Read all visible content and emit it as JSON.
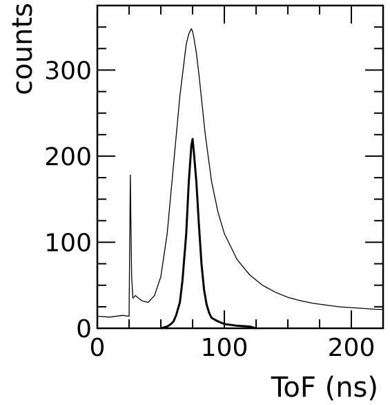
{
  "chart_data": {
    "type": "line",
    "title": "",
    "xlabel": "ToF (ns)",
    "ylabel": "counts",
    "xlim": [
      0,
      225
    ],
    "ylim": [
      0,
      375
    ],
    "x_major_ticks": [
      0,
      100,
      200
    ],
    "x_minor_ticks": [
      25,
      50,
      75,
      125,
      150,
      175
    ],
    "x_tick_labels": [
      "0",
      "100",
      "200"
    ],
    "y_major_ticks": [
      0,
      100,
      200,
      300
    ],
    "y_minor_ticks": [
      25,
      50,
      75,
      125,
      150,
      175,
      225,
      250,
      275,
      325,
      350
    ],
    "y_tick_labels": [
      "0",
      "100",
      "200",
      "300"
    ],
    "grid": false,
    "legend": "none",
    "series": [
      {
        "style": "thin",
        "color": "#000000",
        "x": [
          0,
          10,
          20,
          25,
          26,
          27,
          28,
          30,
          35,
          40,
          45,
          50,
          55,
          60,
          65,
          70,
          72,
          74,
          75,
          76,
          78,
          80,
          85,
          90,
          95,
          100,
          110,
          120,
          130,
          140,
          150,
          160,
          170,
          180,
          190,
          200,
          210,
          220,
          225
        ],
        "y": [
          14,
          13,
          15,
          14,
          178,
          60,
          35,
          38,
          32,
          30,
          38,
          60,
          110,
          190,
          270,
          330,
          342,
          348,
          345,
          338,
          320,
          295,
          225,
          170,
          135,
          110,
          80,
          62,
          50,
          42,
          36,
          32,
          29,
          27,
          25,
          24,
          23,
          22,
          22
        ]
      },
      {
        "style": "thick",
        "color": "#000000",
        "x": [
          50,
          55,
          58,
          60,
          62,
          65,
          67,
          70,
          72,
          74,
          75,
          76,
          78,
          80,
          82,
          84,
          86,
          88,
          90,
          95,
          100,
          110,
          120,
          125
        ],
        "y": [
          0,
          2,
          5,
          8,
          15,
          30,
          55,
          110,
          170,
          212,
          220,
          205,
          170,
          120,
          75,
          45,
          28,
          18,
          12,
          8,
          5,
          3,
          2,
          0
        ]
      }
    ]
  }
}
